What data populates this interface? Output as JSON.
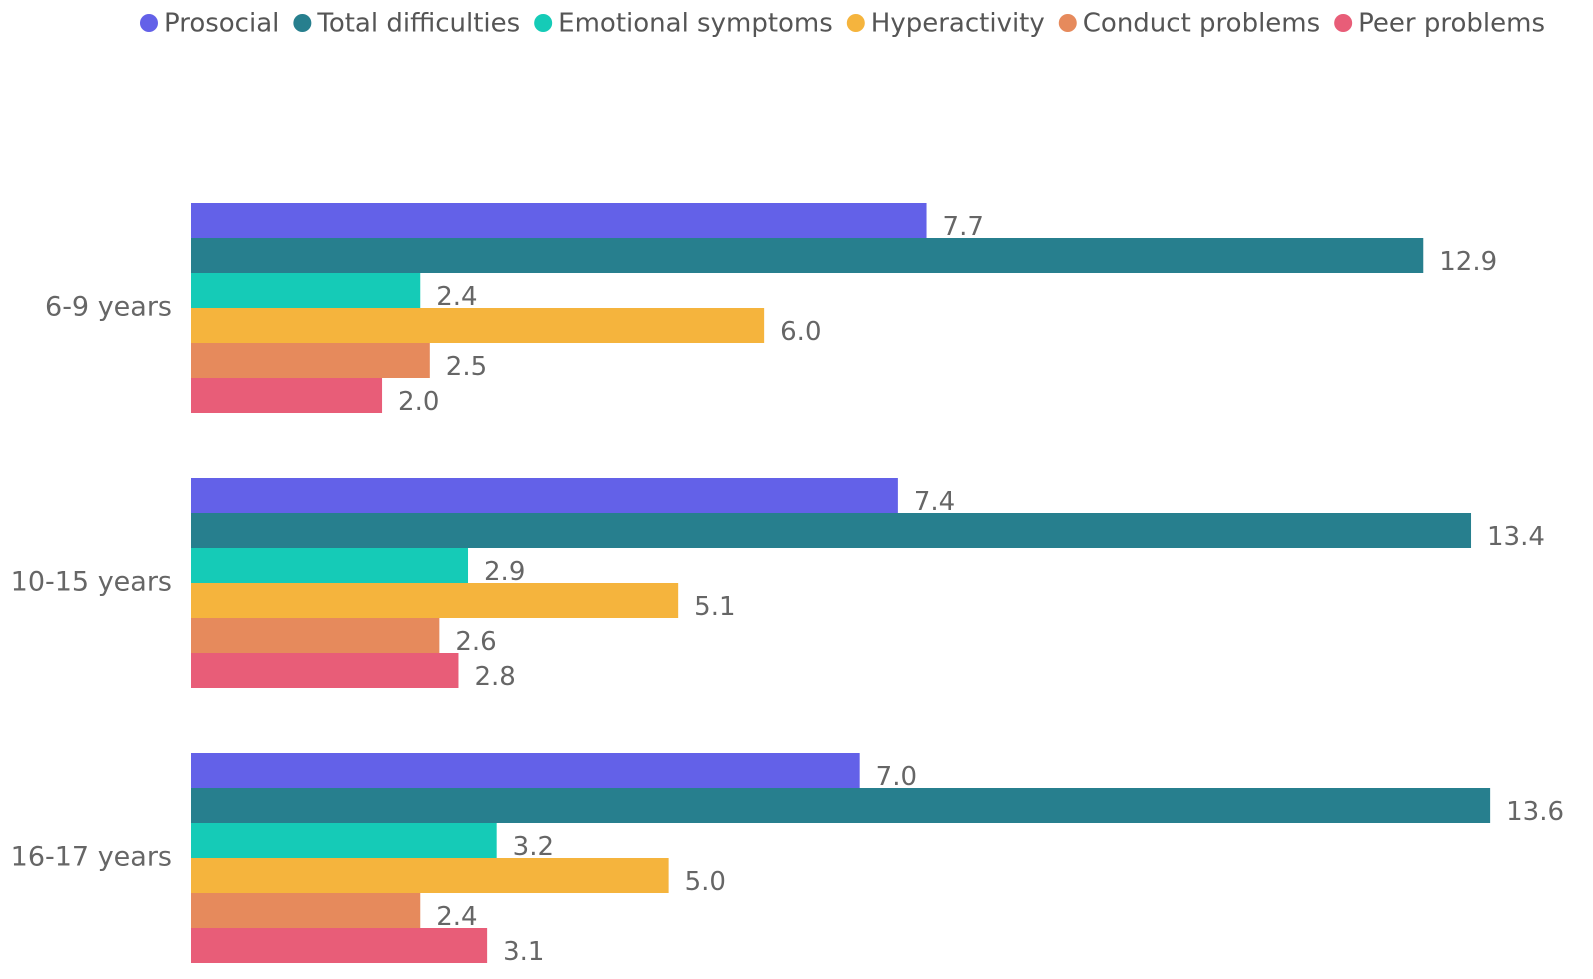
{
  "chart_data": {
    "type": "barh",
    "categories": [
      "6-9 years",
      "10-15 years",
      "16-17 years"
    ],
    "xlim": [
      0,
      14.3
    ],
    "legend": "top-right",
    "series": [
      {
        "name": "Prosocial",
        "color": "#6361e8",
        "values": [
          7.7,
          7.4,
          7.0
        ],
        "value_labels": [
          "7.7",
          "7.4",
          "7.0"
        ]
      },
      {
        "name": "Total difficulties",
        "color": "#277f8e",
        "values": [
          12.9,
          13.4,
          13.6
        ],
        "value_labels": [
          "12.9",
          "13.4",
          "13.6"
        ]
      },
      {
        "name": "Emotional symptoms",
        "color": "#15cbb7",
        "values": [
          2.4,
          2.9,
          3.2
        ],
        "value_labels": [
          "2.4",
          "2.9",
          "3.2"
        ]
      },
      {
        "name": "Hyperactivity",
        "color": "#f5b43d",
        "values": [
          6.0,
          5.1,
          5.0
        ],
        "value_labels": [
          "6.0",
          "5.1",
          "5.0"
        ]
      },
      {
        "name": "Conduct problems",
        "color": "#e68a5c",
        "values": [
          2.5,
          2.6,
          2.4
        ],
        "value_labels": [
          "2.5",
          "2.6",
          "2.4"
        ]
      },
      {
        "name": "Peer problems",
        "color": "#e85d78",
        "values": [
          2.0,
          2.8,
          3.1
        ],
        "value_labels": [
          "2.0",
          "2.8",
          "3.1"
        ]
      }
    ]
  }
}
